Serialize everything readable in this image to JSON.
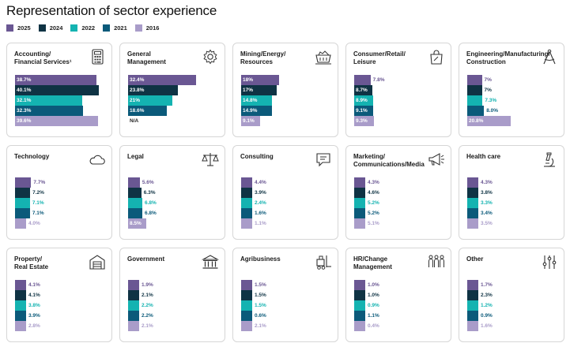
{
  "page": {
    "title": "Representation of sector experience"
  },
  "legend": [
    {
      "year": "2025",
      "color": "#6a5793"
    },
    {
      "year": "2024",
      "color": "#0f3344"
    },
    {
      "year": "2022",
      "color": "#14b3b1"
    },
    {
      "year": "2021",
      "color": "#0b5a7a"
    },
    {
      "year": "2016",
      "color": "#a99cc9"
    }
  ],
  "chart_data": {
    "type": "bar",
    "title": "Representation of sector experience",
    "series_names": [
      "2025",
      "2024",
      "2022",
      "2021",
      "2016"
    ],
    "colors": [
      "#6a5793",
      "#0f3344",
      "#14b3b1",
      "#0b5a7a",
      "#a99cc9"
    ],
    "panels": [
      {
        "sector": "Accounting/\nFinancial Services¹",
        "icon": "calculator-icon",
        "labels": [
          "38.7%",
          "40.1%",
          "32.1%",
          "32.3%",
          "39.6%"
        ],
        "values": [
          38.7,
          40.1,
          32.1,
          32.3,
          39.6
        ]
      },
      {
        "sector": "General\nManagement",
        "icon": "gear-icon",
        "labels": [
          "32.4%",
          "23.8%",
          "21%",
          "18.6%",
          "N/A"
        ],
        "values": [
          32.4,
          23.8,
          21.0,
          18.6,
          null
        ]
      },
      {
        "sector": "Mining/Energy/\nResources",
        "icon": "mining-cart-icon",
        "labels": [
          "18%",
          "17%",
          "14.8%",
          "14.9%",
          "9.1%"
        ],
        "values": [
          18.0,
          17.0,
          14.8,
          14.9,
          9.1
        ]
      },
      {
        "sector": "Consumer/Retail/\nLeisure",
        "icon": "shopping-bag-icon",
        "labels": [
          "7.8%",
          "8.7%",
          "8.9%",
          "9.1%",
          "9.3%"
        ],
        "values": [
          7.8,
          8.7,
          8.9,
          9.1,
          9.3
        ]
      },
      {
        "sector": "Engineering/Manufacturing/\nConstruction",
        "icon": "compass-icon",
        "labels": [
          "7%",
          "7%",
          "7.3%",
          "8.0%",
          "20.8%"
        ],
        "values": [
          7.0,
          7.0,
          7.3,
          8.0,
          20.8
        ]
      },
      {
        "sector": "Technology",
        "icon": "cloud-icon",
        "labels": [
          "7.7%",
          "7.2%",
          "7.1%",
          "7.1%",
          "4.0%"
        ],
        "values": [
          7.7,
          7.2,
          7.1,
          7.1,
          4.0
        ]
      },
      {
        "sector": "Legal",
        "icon": "scales-icon",
        "labels": [
          "5.6%",
          "6.3%",
          "6.8%",
          "6.8%",
          "8.5%"
        ],
        "values": [
          5.6,
          6.3,
          6.8,
          6.8,
          8.5
        ]
      },
      {
        "sector": "Consulting",
        "icon": "speech-bubble-icon",
        "labels": [
          "4.4%",
          "3.9%",
          "2.4%",
          "1.6%",
          "1.1%"
        ],
        "values": [
          4.4,
          3.9,
          2.4,
          1.6,
          1.1
        ]
      },
      {
        "sector": "Marketing/\nCommunications/Media",
        "icon": "megaphone-icon",
        "labels": [
          "4.3%",
          "4.6%",
          "5.2%",
          "5.2%",
          "5.1%"
        ],
        "values": [
          4.3,
          4.6,
          5.2,
          5.2,
          5.1
        ]
      },
      {
        "sector": "Health care",
        "icon": "microscope-icon",
        "labels": [
          "4.3%",
          "3.8%",
          "3.3%",
          "3.4%",
          "3.5%"
        ],
        "values": [
          4.3,
          3.8,
          3.3,
          3.4,
          3.5
        ]
      },
      {
        "sector": "Property/\nReal Estate",
        "icon": "warehouse-icon",
        "labels": [
          "4.1%",
          "4.1%",
          "3.8%",
          "3.9%",
          "2.8%"
        ],
        "values": [
          4.1,
          4.1,
          3.8,
          3.9,
          2.8
        ]
      },
      {
        "sector": "Government",
        "icon": "government-building-icon",
        "labels": [
          "1.9%",
          "2.1%",
          "2.2%",
          "2.2%",
          "2.1%"
        ],
        "values": [
          1.9,
          2.1,
          2.2,
          2.2,
          2.1
        ]
      },
      {
        "sector": "Agribusiness",
        "icon": "forklift-icon",
        "labels": [
          "1.5%",
          "1.5%",
          "1.5%",
          "0.6%",
          "2.1%"
        ],
        "values": [
          1.5,
          1.5,
          1.5,
          0.6,
          2.1
        ]
      },
      {
        "sector": "HR/Change\nManagement",
        "icon": "people-group-icon",
        "labels": [
          "1.0%",
          "1.0%",
          "0.9%",
          "1.1%",
          "0.4%"
        ],
        "values": [
          1.0,
          1.0,
          0.9,
          1.1,
          0.4
        ]
      },
      {
        "sector": "Other",
        "icon": "sliders-icon",
        "labels": [
          "1.7%",
          "2.3%",
          "1.2%",
          "0.9%",
          "1.6%"
        ],
        "values": [
          1.7,
          2.3,
          1.2,
          0.9,
          1.6
        ]
      }
    ]
  }
}
